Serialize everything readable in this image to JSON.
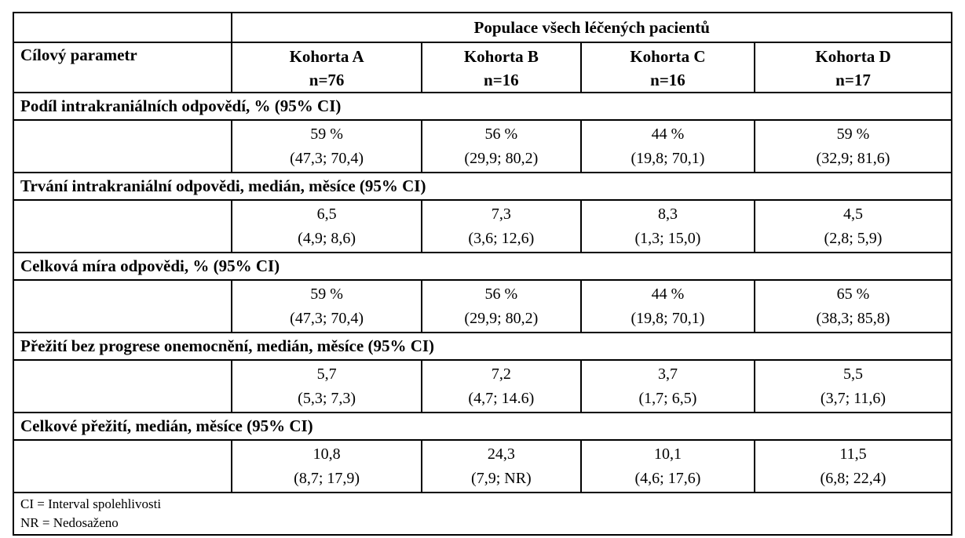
{
  "table": {
    "top_header": "Populace všech léčených pacientů",
    "col_header": "Cílový parametr",
    "cohorts": [
      {
        "label": "Kohorta A",
        "n": "n=76"
      },
      {
        "label": "Kohorta B",
        "n": "n=16"
      },
      {
        "label": "Kohorta C",
        "n": "n=16"
      },
      {
        "label": "Kohorta D",
        "n": "n=17"
      }
    ],
    "sections": [
      {
        "title": "Podíl intrakraniálních odpovědí, % (95% CI)",
        "values": [
          "59 %",
          "56 %",
          "44 %",
          "59 %"
        ],
        "cis": [
          "(47,3; 70,4)",
          "(29,9; 80,2)",
          "(19,8; 70,1)",
          "(32,9; 81,6)"
        ]
      },
      {
        "title": "Trvání intrakraniální odpovědi, medián, měsíce (95% CI)",
        "values": [
          "6,5",
          "7,3",
          "8,3",
          "4,5"
        ],
        "cis": [
          "(4,9; 8,6)",
          "(3,6; 12,6)",
          "(1,3; 15,0)",
          "(2,8; 5,9)"
        ]
      },
      {
        "title": "Celková míra odpovědi, % (95% CI)",
        "values": [
          "59 %",
          "56 %",
          "44 %",
          "65 %"
        ],
        "cis": [
          "(47,3; 70,4)",
          "(29,9; 80,2)",
          "(19,8; 70,1)",
          "(38,3; 85,8)"
        ]
      },
      {
        "title": "Přežití bez progrese onemocnění, medián, měsíce (95% CI)",
        "values": [
          "5,7",
          "7,2",
          "3,7",
          "5,5"
        ],
        "cis": [
          "(5,3; 7,3)",
          "(4,7; 14.6)",
          "(1,7; 6,5)",
          "(3,7; 11,6)"
        ]
      },
      {
        "title": "Celkové přežití, medián, měsíce (95% CI)",
        "values": [
          "10,8",
          "24,3",
          "10,1",
          "11,5"
        ],
        "cis": [
          "(8,7; 17,9)",
          "(7,9; NR)",
          "(4,6; 17,6)",
          "(6,8; 22,4)"
        ]
      }
    ],
    "footnotes": [
      "CI = Interval spolehlivosti",
      "NR = Nedosaženo"
    ]
  }
}
